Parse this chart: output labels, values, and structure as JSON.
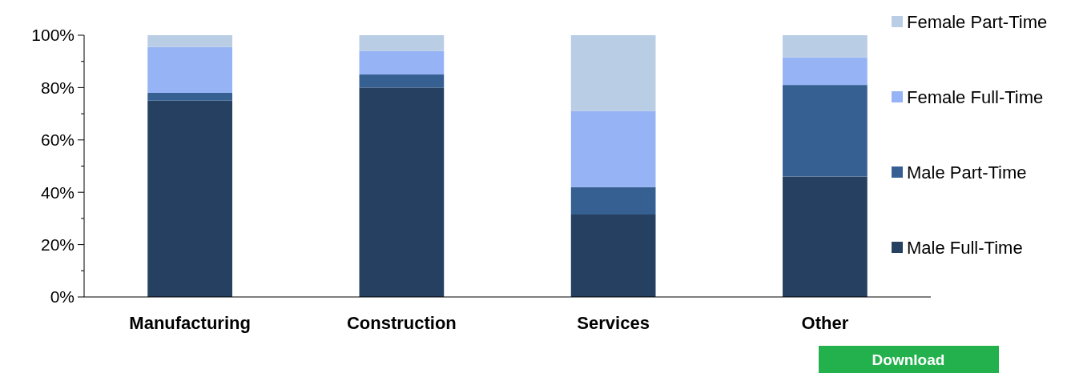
{
  "chart_data": {
    "type": "bar",
    "stacked": true,
    "categories": [
      "Manufacturing",
      "Construction",
      "Services",
      "Other"
    ],
    "series": [
      {
        "name": "Male Full-Time",
        "color": "#264061",
        "values": [
          75,
          80,
          31.5,
          46
        ]
      },
      {
        "name": "Male Part-Time",
        "color": "#366092",
        "values": [
          3,
          5,
          10.5,
          35
        ]
      },
      {
        "name": "Female Full-Time",
        "color": "#95b3f5",
        "values": [
          17.5,
          9,
          29,
          10.5
        ]
      },
      {
        "name": "Female Part-Time",
        "color": "#b9cde5",
        "values": [
          4.5,
          6,
          29,
          8.5
        ]
      }
    ],
    "ylim": [
      0,
      100
    ],
    "yticks": [
      {
        "value": 0,
        "label": "0%"
      },
      {
        "value": 10,
        "label": null
      },
      {
        "value": 20,
        "label": "20%"
      },
      {
        "value": 30,
        "label": null
      },
      {
        "value": 40,
        "label": "40%"
      },
      {
        "value": 50,
        "label": null
      },
      {
        "value": 60,
        "label": "60%"
      },
      {
        "value": 70,
        "label": null
      },
      {
        "value": 80,
        "label": "80%"
      },
      {
        "value": 90,
        "label": null
      },
      {
        "value": 100,
        "label": "100%"
      }
    ],
    "grid": false,
    "legend": "right",
    "annotations": [
      "Download"
    ]
  }
}
